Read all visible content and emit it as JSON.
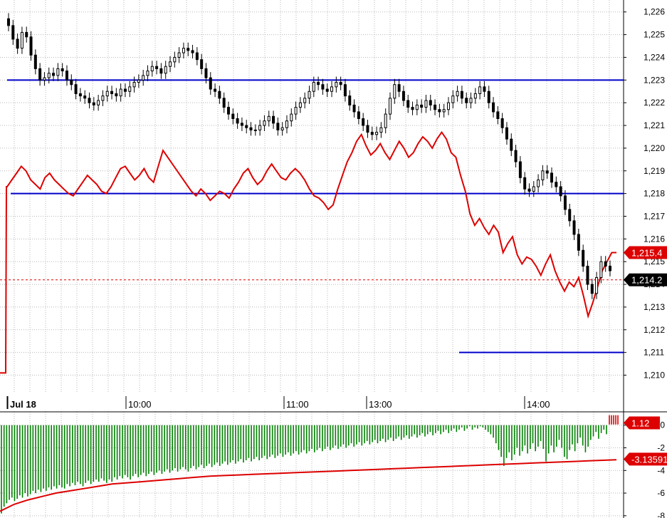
{
  "chart_data": [
    {
      "type": "candlestick",
      "panel": "price",
      "ylim": [
        1209.2,
        1226.4
      ],
      "y_ticks": [
        "1,210",
        "1,211",
        "1,212",
        "1,213",
        "1,214",
        "1,215",
        "1,216",
        "1,217",
        "1,218",
        "1,219",
        "1,220",
        "1,221",
        "1,222",
        "1,223",
        "1,224",
        "1,225",
        "1,226"
      ],
      "x_labels": [
        "Jul 18",
        "10:00",
        "11:00",
        "13:00",
        "14:00"
      ],
      "grid": true,
      "price_close_series": [
        1225.4,
        1224.8,
        1224.4,
        1225.1,
        1224.9,
        1224.1,
        1223.5,
        1223.0,
        1223.1,
        1223.3,
        1223.2,
        1223.5,
        1223.4,
        1223.0,
        1222.8,
        1222.4,
        1222.3,
        1222.2,
        1222.0,
        1221.9,
        1222.1,
        1222.3,
        1222.5,
        1222.4,
        1222.3,
        1222.6,
        1222.5,
        1222.7,
        1222.9,
        1223.0,
        1223.2,
        1223.4,
        1223.6,
        1223.5,
        1223.3,
        1223.6,
        1223.8,
        1224.0,
        1224.2,
        1224.4,
        1224.3,
        1224.2,
        1223.9,
        1223.5,
        1223.1,
        1222.6,
        1222.5,
        1222.2,
        1221.8,
        1221.5,
        1221.3,
        1221.1,
        1221.0,
        1220.9,
        1220.8,
        1220.8,
        1221.0,
        1221.2,
        1221.4,
        1221.1,
        1220.8,
        1220.9,
        1221.2,
        1221.5,
        1221.8,
        1222.0,
        1222.2,
        1222.5,
        1222.9,
        1222.8,
        1222.6,
        1222.5,
        1222.7,
        1222.9,
        1222.8,
        1222.3,
        1221.9,
        1221.6,
        1221.3,
        1221.0,
        1220.7,
        1220.6,
        1220.7,
        1220.9,
        1221.5,
        1222.2,
        1222.8,
        1222.5,
        1222.1,
        1221.8,
        1221.7,
        1221.9,
        1221.8,
        1222.1,
        1221.9,
        1221.7,
        1221.6,
        1221.7,
        1222.0,
        1222.3,
        1222.5,
        1222.2,
        1222.0,
        1222.2,
        1222.4,
        1222.7,
        1222.5,
        1222.0,
        1221.6,
        1221.3,
        1220.9,
        1220.4,
        1219.9,
        1219.4,
        1218.7,
        1218.2,
        1218.1,
        1218.3,
        1218.6,
        1219.0,
        1218.9,
        1218.5,
        1218.3,
        1217.9,
        1217.3,
        1216.8,
        1216.2,
        1215.5,
        1214.8,
        1214.0,
        1213.6,
        1214.3,
        1215.0,
        1214.8,
        1214.6
      ]
    },
    {
      "type": "line",
      "panel": "price-overlay",
      "series": [
        {
          "color": "#dd0000",
          "values": [
            1218.3,
            1218.6,
            1218.9,
            1219.2,
            1219.0,
            1218.6,
            1218.4,
            1218.2,
            1218.7,
            1218.9,
            1218.6,
            1218.4,
            1218.2,
            1218.0,
            1217.9,
            1218.2,
            1218.5,
            1218.8,
            1218.6,
            1218.4,
            1218.1,
            1218.0,
            1218.3,
            1218.7,
            1219.1,
            1219.2,
            1218.9,
            1218.6,
            1218.8,
            1219.1,
            1218.7,
            1218.5,
            1219.2,
            1219.9,
            1219.6,
            1219.3,
            1219.0,
            1218.7,
            1218.4,
            1218.1,
            1217.9,
            1218.2,
            1218.0,
            1217.7,
            1217.9,
            1218.1,
            1218.0,
            1217.8,
            1218.2,
            1218.5,
            1218.9,
            1219.1,
            1218.7,
            1218.4,
            1218.6,
            1219.0,
            1219.3,
            1219.0,
            1218.7,
            1218.6,
            1218.9,
            1219.1,
            1218.9,
            1218.6,
            1218.2,
            1217.9,
            1217.8,
            1217.6,
            1217.3,
            1217.5,
            1218.2,
            1218.8,
            1219.4,
            1219.8,
            1220.3,
            1220.6,
            1220.1,
            1219.7,
            1219.9,
            1220.2,
            1219.8,
            1219.5,
            1219.9,
            1220.3,
            1220.0,
            1219.6,
            1219.8,
            1220.2,
            1220.5,
            1220.3,
            1220.0,
            1220.4,
            1220.7,
            1220.4,
            1219.8,
            1219.6,
            1218.8,
            1218.1,
            1217.1,
            1216.6,
            1216.9,
            1216.5,
            1216.2,
            1216.6,
            1216.3,
            1215.4,
            1215.8,
            1216.1,
            1215.3,
            1214.9,
            1215.2,
            1215.1,
            1214.8,
            1214.4,
            1214.9,
            1215.3,
            1214.6,
            1214.1,
            1213.7,
            1214.1,
            1213.9,
            1214.3,
            1213.5,
            1212.6,
            1213.2,
            1213.9,
            1214.6,
            1215.0,
            1215.4,
            1215.4
          ]
        }
      ]
    },
    {
      "type": "bar",
      "panel": "oscillator",
      "ylim": [
        -8.2,
        0.8
      ],
      "y_ticks": [
        "0",
        "-2",
        "-4",
        "-6",
        "-8"
      ],
      "series": [
        {
          "color": "#008000",
          "values": [
            -7.8,
            -7.2,
            -6.9,
            -6.6,
            -6.4,
            -6.7,
            -6.5,
            -6.2,
            -6.4,
            -6.0,
            -6.3,
            -6.1,
            -5.8,
            -6.0,
            -5.7,
            -5.9,
            -5.6,
            -5.8,
            -5.5,
            -5.7,
            -5.4,
            -5.6,
            -5.3,
            -5.5,
            -5.6,
            -5.2,
            -5.4,
            -5.1,
            -5.3,
            -5.0,
            -5.2,
            -5.4,
            -5.1,
            -4.9,
            -5.2,
            -5.0,
            -4.8,
            -5.0,
            -4.7,
            -4.9,
            -5.1,
            -4.8,
            -5.0,
            -4.6,
            -4.8,
            -4.5,
            -4.7,
            -4.4,
            -4.6,
            -4.8,
            -4.5,
            -4.3,
            -4.6,
            -4.4,
            -4.2,
            -4.5,
            -4.3,
            -4.1,
            -4.4,
            -4.2,
            -4.0,
            -4.3,
            -4.1,
            -3.9,
            -4.2,
            -4.0,
            -3.8,
            -4.1,
            -3.9,
            -3.7,
            -3.9,
            -4.1,
            -3.8,
            -3.6,
            -3.9,
            -3.7,
            -3.5,
            -3.8,
            -3.6,
            -3.4,
            -3.7,
            -3.5,
            -3.3,
            -3.6,
            -3.4,
            -3.2,
            -3.5,
            -3.3,
            -3.1,
            -3.4,
            -3.2,
            -3.0,
            -3.3,
            -3.1,
            -2.9,
            -3.2,
            -3.0,
            -2.8,
            -3.1,
            -2.9,
            -2.7,
            -3.0,
            -2.8,
            -2.6,
            -2.9,
            -2.7,
            -2.5,
            -2.8,
            -2.6,
            -2.4,
            -2.7,
            -2.5,
            -2.3,
            -2.6,
            -2.4,
            -2.2,
            -2.5,
            -2.3,
            -2.1,
            -2.4,
            -2.2,
            -2.0,
            -2.3,
            -2.1,
            -1.9,
            -2.2,
            -2.0,
            -1.8,
            -2.1,
            -1.9,
            -1.7,
            -2.0,
            -1.8,
            -1.6,
            -1.9,
            -1.7,
            -1.5,
            -1.8,
            -1.6,
            -1.4,
            -1.7,
            -1.5,
            -1.3,
            -1.6,
            -1.4,
            -1.2,
            -1.5,
            -1.3,
            -1.1,
            -1.4,
            -1.2,
            -1.0,
            -1.3,
            -1.1,
            -0.9,
            -1.2,
            -1.0,
            -0.8,
            -1.1,
            -0.9,
            -0.7,
            -1.0,
            -0.8,
            -0.6,
            -0.9,
            -0.7,
            -0.5,
            -0.8,
            -0.6,
            -0.4,
            -0.7,
            -0.5,
            -0.3,
            -0.6,
            -0.4,
            -0.2,
            -0.5,
            -0.3,
            -0.1,
            -0.4,
            -0.2,
            -0.3,
            -0.1,
            -0.2,
            -0.4,
            -0.6,
            -0.8,
            -1.1,
            -1.6,
            -2.2,
            -2.8,
            -3.6,
            -2.9,
            -2.4,
            -3.1,
            -2.6,
            -2.0,
            -2.7,
            -2.3,
            -1.8,
            -2.5,
            -2.1,
            -1.6,
            -2.3,
            -1.9,
            -1.4,
            -2.1,
            -3.2,
            -2.5,
            -1.8,
            -2.4,
            -1.9,
            -1.3,
            -2.0,
            -2.8,
            -3.0,
            -2.2,
            -1.7,
            -2.3,
            -1.6,
            -1.1,
            -1.8,
            -2.4,
            -1.9,
            -1.3,
            -1.0,
            -0.6,
            -1.2,
            -0.7,
            -0.4,
            -0.8
          ]
        },
        {
          "color": "#dd0000",
          "values": [
            0.5,
            0.5,
            0.5,
            0.5,
            0.5
          ]
        }
      ],
      "signal_line": {
        "color": "#dd0000",
        "values": [
          -7.6,
          -7.0,
          -6.6,
          -6.3,
          -6.0,
          -5.8,
          -5.6,
          -5.4,
          -5.2,
          -5.1,
          -5.0,
          -4.9,
          -4.8,
          -4.7,
          -4.6,
          -4.5,
          -4.45,
          -4.4,
          -4.35,
          -4.3,
          -4.25,
          -4.2,
          -4.15,
          -4.1,
          -4.05,
          -4.0,
          -3.95,
          -3.9,
          -3.85,
          -3.8,
          -3.75,
          -3.7,
          -3.65,
          -3.6,
          -3.55,
          -3.5,
          -3.45,
          -3.4,
          -3.35,
          -3.3,
          -3.25,
          -3.2,
          -3.15,
          -3.1,
          -3.06
        ]
      }
    }
  ],
  "price_panel": {
    "support_lines": [
      {
        "value": 1223.0,
        "color": "#0000cc"
      },
      {
        "value": 1218.0,
        "color": "#0000cc"
      },
      {
        "value": 1211.0,
        "color": "#0000cc"
      }
    ],
    "dashed_level": {
      "value": 1214.2,
      "color": "#dd0000"
    },
    "badges": [
      {
        "label": "1,215.4",
        "value": 1215.4,
        "bg": "#dd0000",
        "fg": "#ffffff"
      },
      {
        "label": "1,214.2",
        "value": 1214.2,
        "bg": "#000000",
        "fg": "#ffffff"
      }
    ]
  },
  "oscillator_panel": {
    "badges": [
      {
        "label": "1.12",
        "value": 0.2,
        "bg": "#dd0000",
        "fg": "#ffffff"
      },
      {
        "label": "-3.13591",
        "value": -3.0,
        "bg": "#dd0000",
        "fg": "#ffffff"
      }
    ]
  },
  "colors": {
    "grid": "#b8b8b8",
    "axis_line": "#000000",
    "candle": "#000000",
    "overlay_line": "#dd0000",
    "bars": "#008000",
    "support": "#0000cc"
  }
}
